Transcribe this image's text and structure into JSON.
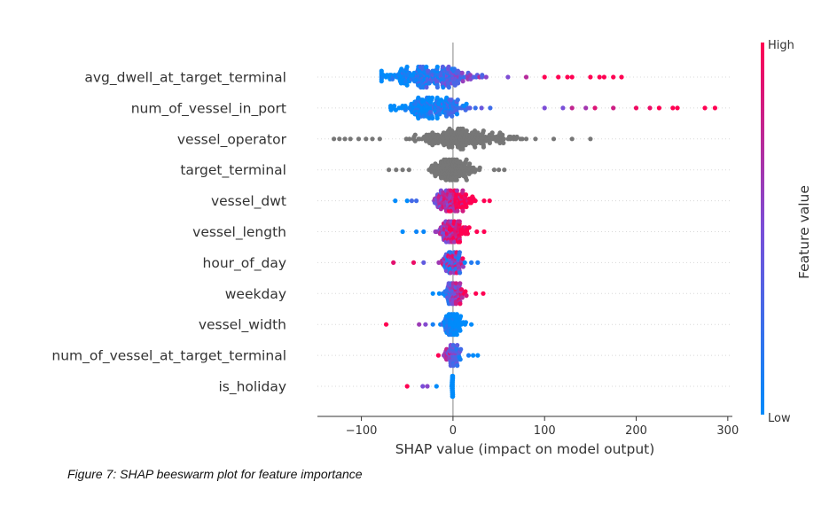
{
  "chart_data": {
    "type": "scatter",
    "subtype": "shap-beeswarm",
    "xlabel": "SHAP value (impact on model output)",
    "xticks": [
      -100,
      0,
      100,
      200,
      300
    ],
    "xlim": [
      -148,
      305
    ],
    "features": [
      {
        "name": "avg_dwell_at_target_terminal",
        "n": 230,
        "min": -78,
        "max": 184,
        "spread": 45,
        "colored": true,
        "corr": 1,
        "center": -25,
        "outliers": [
          -78,
          -72,
          60,
          80,
          100,
          115,
          125,
          130,
          150,
          160,
          165,
          175,
          184
        ]
      },
      {
        "name": "num_of_vessel_in_port",
        "n": 170,
        "min": -68,
        "max": 286,
        "spread": 38,
        "colored": true,
        "corr": 1,
        "center": -20,
        "outliers": [
          -68,
          100,
          120,
          130,
          145,
          155,
          175,
          200,
          215,
          225,
          240,
          245,
          275,
          286
        ]
      },
      {
        "name": "vessel_operator",
        "n": 200,
        "min": -130,
        "max": 150,
        "spread": 50,
        "colored": false,
        "corr": 0,
        "center": 5,
        "outliers": [
          -130,
          -124,
          -118,
          -112,
          -103,
          -95,
          -88,
          -80,
          80,
          90,
          110,
          130,
          150
        ]
      },
      {
        "name": "target_terminal",
        "n": 150,
        "min": -70,
        "max": 56,
        "spread": 24,
        "colored": false,
        "corr": 0,
        "center": 0,
        "outliers": [
          -70,
          -62,
          -55,
          -48,
          45,
          50,
          56
        ]
      },
      {
        "name": "vessel_dwt",
        "n": 140,
        "min": -63,
        "max": 40,
        "spread": 18,
        "colored": true,
        "corr": 1,
        "center": 0,
        "outliers": [
          -63,
          -50,
          -45,
          -40,
          34,
          40
        ]
      },
      {
        "name": "vessel_length",
        "n": 130,
        "min": -55,
        "max": 34,
        "spread": 14,
        "colored": true,
        "corr": 1,
        "center": 0,
        "outliers": [
          -55,
          -40,
          -32,
          26,
          34
        ]
      },
      {
        "name": "hour_of_day",
        "n": 110,
        "min": -65,
        "max": 27,
        "spread": 11,
        "colored": true,
        "corr": 0,
        "center": 0,
        "outliers": [
          -65,
          -43,
          -32,
          20,
          27
        ]
      },
      {
        "name": "weekday",
        "n": 110,
        "min": -22,
        "max": 33,
        "spread": 10,
        "colored": true,
        "corr": 1,
        "center": 2,
        "outliers": [
          -22,
          -15,
          25,
          33
        ]
      },
      {
        "name": "vessel_width",
        "n": 100,
        "min": -73,
        "max": 20,
        "spread": 9,
        "colored": true,
        "corr": -1,
        "center": 0,
        "outliers": [
          -73,
          -37,
          -30,
          -22,
          14,
          20
        ]
      },
      {
        "name": "num_of_vessel_at_target_terminal",
        "n": 80,
        "min": -16,
        "max": 27,
        "spread": 7,
        "colored": true,
        "corr": -1,
        "center": 0,
        "outliers": [
          -16,
          -10,
          17,
          22,
          27
        ]
      },
      {
        "name": "is_holiday",
        "n": 60,
        "min": -50,
        "max": 2,
        "spread": 1,
        "colored": true,
        "corr": -1,
        "center": 0,
        "outliers": [
          -50,
          -33,
          -28,
          -18
        ]
      }
    ],
    "colorbar": {
      "label": "Feature value",
      "high": "High",
      "low": "Low",
      "high_color": "#ff0052",
      "low_color": "#008bfb"
    },
    "neutral_color": "#777777",
    "grid": false,
    "legend": "colorbar-right"
  },
  "caption": "Figure 7: SHAP beeswarm plot for feature importance"
}
